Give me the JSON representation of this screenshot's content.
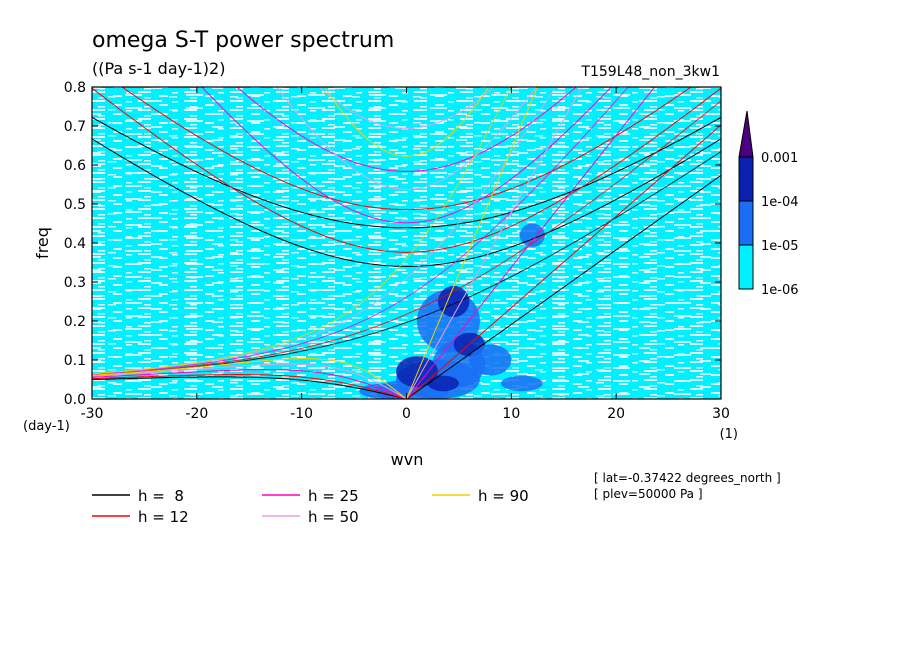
{
  "chart_data": {
    "type": "heatmap",
    "title": "omega S-T power spectrum",
    "subtitle": "((Pa s-1 day-1)2)",
    "run_label": "T159L48_non_3kw1",
    "xlabel": "wvn",
    "x_unit": "(1)",
    "ylabel": "freq",
    "y_unit": "(day-1)",
    "xlim": [
      -30,
      30
    ],
    "ylim": [
      0,
      0.8
    ],
    "x_ticks": [
      "-30",
      "-20",
      "-10",
      "0",
      "10",
      "20",
      "30"
    ],
    "x_tick_values": [
      -30,
      -20,
      -10,
      0,
      10,
      20,
      30
    ],
    "y_ticks": [
      "0.0",
      "0.1",
      "0.2",
      "0.3",
      "0.4",
      "0.5",
      "0.6",
      "0.7",
      "0.8"
    ],
    "y_tick_values": [
      0,
      0.1,
      0.2,
      0.3,
      0.4,
      0.5,
      0.6,
      0.7,
      0.8
    ],
    "colorbar": {
      "levels": [
        "0.001",
        "1e-04",
        "1e-05",
        "1e-06"
      ],
      "colors": [
        "#4b0082",
        "#0a20b0",
        "#1a6ef5",
        "#00f0ff"
      ],
      "extend": "max"
    },
    "field_colors": {
      "low": "#00f0ff",
      "mid": "#1a6ef5",
      "high": "#0a20b0"
    },
    "curves": [
      {
        "label": "h = ",
        "value": "8",
        "h": 8,
        "color": "#000000"
      },
      {
        "label": "h = ",
        "value": "12",
        "h": 12,
        "color": "#ff0000"
      },
      {
        "label": "h = ",
        "value": "25",
        "h": 25,
        "color": "#ff00c8"
      },
      {
        "label": "h = ",
        "value": "50",
        "h": 50,
        "color": "#e6a0e6"
      },
      {
        "label": "h = ",
        "value": "90",
        "h": 90,
        "color": "#f0d200"
      }
    ],
    "annotations": [
      "[ lat=-0.37422 degrees_north ]",
      "[ plev=50000 Pa ]"
    ]
  }
}
